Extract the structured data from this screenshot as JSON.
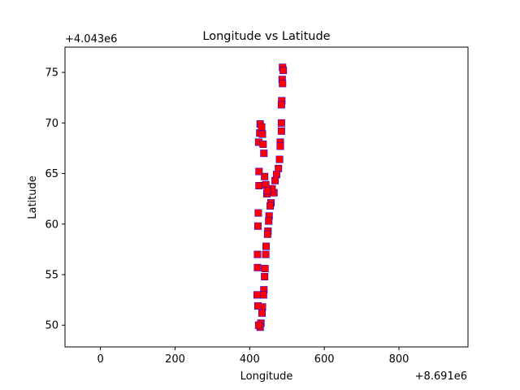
{
  "chart_data": {
    "type": "scatter",
    "title": "Longitude vs Latitude",
    "xlabel": "Longitude",
    "ylabel": "Latitude",
    "x_offset_label": "+8.691e6",
    "y_offset_label": "+4.043e6",
    "xlim": [
      -95,
      985
    ],
    "ylim": [
      47.85,
      77.5
    ],
    "xticks": [
      0,
      200,
      400,
      600,
      800
    ],
    "yticks": [
      50,
      55,
      60,
      65,
      70,
      75
    ],
    "grid": false,
    "marker_colors": {
      "primary": "#ff0000",
      "underlay": "#0000ff"
    },
    "points": [
      {
        "x": 488,
        "y": 75.5
      },
      {
        "x": 490,
        "y": 75.2
      },
      {
        "x": 487,
        "y": 74.3
      },
      {
        "x": 488,
        "y": 73.9
      },
      {
        "x": 486,
        "y": 72.2
      },
      {
        "x": 485,
        "y": 71.8
      },
      {
        "x": 485,
        "y": 70.0
      },
      {
        "x": 485,
        "y": 69.2
      },
      {
        "x": 482,
        "y": 68.1
      },
      {
        "x": 482,
        "y": 67.7
      },
      {
        "x": 480,
        "y": 66.4
      },
      {
        "x": 477,
        "y": 65.5
      },
      {
        "x": 472,
        "y": 64.9
      },
      {
        "x": 468,
        "y": 64.3
      },
      {
        "x": 465,
        "y": 63.1
      },
      {
        "x": 460,
        "y": 63.5
      },
      {
        "x": 457,
        "y": 62.1
      },
      {
        "x": 455,
        "y": 61.8
      },
      {
        "x": 452,
        "y": 60.8
      },
      {
        "x": 451,
        "y": 60.3
      },
      {
        "x": 449,
        "y": 59.3
      },
      {
        "x": 448,
        "y": 59.0
      },
      {
        "x": 444,
        "y": 57.8
      },
      {
        "x": 443,
        "y": 57.0
      },
      {
        "x": 441,
        "y": 55.6
      },
      {
        "x": 440,
        "y": 54.8
      },
      {
        "x": 438,
        "y": 53.5
      },
      {
        "x": 437,
        "y": 53.0
      },
      {
        "x": 434,
        "y": 51.8
      },
      {
        "x": 433,
        "y": 51.2
      },
      {
        "x": 430,
        "y": 50.2
      },
      {
        "x": 428,
        "y": 49.8
      },
      {
        "x": 424,
        "y": 50.0
      },
      {
        "x": 422,
        "y": 51.9
      },
      {
        "x": 420,
        "y": 53.0
      },
      {
        "x": 421,
        "y": 55.7
      },
      {
        "x": 421,
        "y": 57.0
      },
      {
        "x": 422,
        "y": 59.8
      },
      {
        "x": 423,
        "y": 61.1
      },
      {
        "x": 425,
        "y": 63.8
      },
      {
        "x": 425,
        "y": 65.2
      },
      {
        "x": 424,
        "y": 68.1
      },
      {
        "x": 427,
        "y": 69.0
      },
      {
        "x": 428,
        "y": 69.9
      },
      {
        "x": 432,
        "y": 69.6
      },
      {
        "x": 434,
        "y": 68.9
      },
      {
        "x": 436,
        "y": 67.9
      },
      {
        "x": 438,
        "y": 67.0
      },
      {
        "x": 440,
        "y": 64.7
      },
      {
        "x": 443,
        "y": 63.9
      },
      {
        "x": 446,
        "y": 63.0
      },
      {
        "x": 447,
        "y": 63.3
      }
    ]
  }
}
